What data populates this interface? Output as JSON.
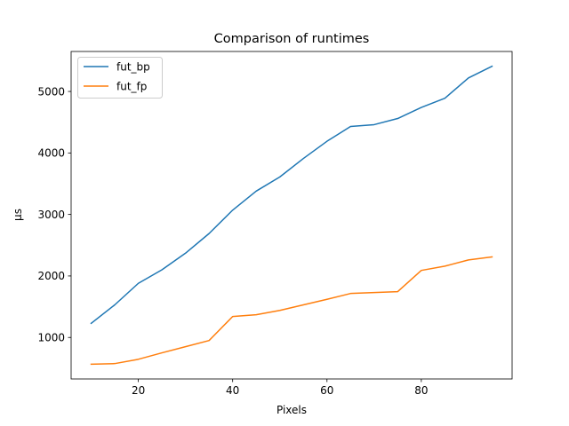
{
  "chart_data": {
    "type": "line",
    "title": "Comparison of runtimes",
    "xlabel": "Pixels",
    "ylabel": "μs",
    "xlim": [
      5.75,
      99.25
    ],
    "ylim": [
      325,
      5650
    ],
    "x_ticks": [
      20,
      40,
      60,
      80
    ],
    "y_ticks": [
      1000,
      2000,
      3000,
      4000,
      5000
    ],
    "grid": false,
    "legend": "upper-left",
    "x": [
      10,
      15,
      20,
      25,
      30,
      35,
      40,
      45,
      50,
      55,
      60,
      65,
      70,
      75,
      80,
      85,
      90,
      95
    ],
    "series": [
      {
        "name": "fut_bp",
        "color": "#1f77b4",
        "values": [
          1230,
          1530,
          1880,
          2100,
          2370,
          2690,
          3070,
          3380,
          3610,
          3910,
          4190,
          4430,
          4460,
          4560,
          4740,
          4890,
          5220,
          5410
        ]
      },
      {
        "name": "fut_fp",
        "color": "#ff7f0e",
        "values": [
          565,
          575,
          645,
          750,
          850,
          950,
          1340,
          1370,
          1440,
          1530,
          1620,
          1715,
          1730,
          1745,
          2090,
          2160,
          2260,
          2310
        ]
      }
    ]
  }
}
